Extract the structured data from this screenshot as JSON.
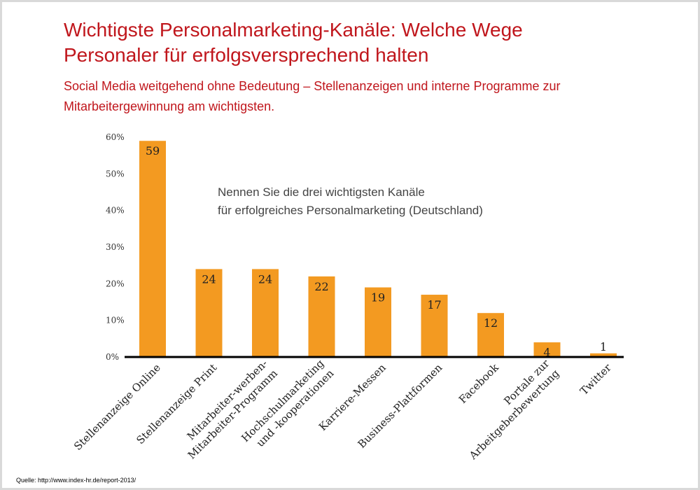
{
  "header": {
    "title_line1": "Wichtigste Personalmarketing-Kanäle: Welche Wege",
    "title_line2": "Personaler für erfolgsversprechend halten",
    "subtitle_line1": "Social Media weitgehend ohne Bedeutung – Stellenanzeigen und interne Programme zur",
    "subtitle_line2": "Mitarbeitergewinnung am wichtigsten."
  },
  "footer": {
    "source": "Quelle: http://www.index-hr.de/report-2013/"
  },
  "colors": {
    "title": "#c0161c",
    "bar": "#f39a21",
    "axis": "#000000"
  },
  "chart_data": {
    "type": "bar",
    "annotation": [
      "Nennen Sie die drei wichtigsten Kanäle",
      "für erfolgreiches Personalmarketing (Deutschland)"
    ],
    "categories": [
      [
        "Stellenanzeige Online"
      ],
      [
        "Stellenanzeige Print"
      ],
      [
        "Mitarbeiter-werben-",
        "Mitarbeiter-Programm"
      ],
      [
        "Hochschulmarketing",
        "und -kooperationen"
      ],
      [
        "Karriere-Messen"
      ],
      [
        "Business-Plattformen"
      ],
      [
        "Facebook"
      ],
      [
        "Portale zur",
        "Arbeitgeberbewertung"
      ],
      [
        "Twitter"
      ]
    ],
    "values": [
      59,
      24,
      24,
      22,
      19,
      17,
      12,
      4,
      1
    ],
    "ylim": [
      0,
      60
    ],
    "yticks": [
      0,
      10,
      20,
      30,
      40,
      50,
      60
    ],
    "ytick_labels": [
      "0%",
      "10%",
      "20%",
      "30%",
      "40%",
      "50%",
      "60%"
    ],
    "grid": false,
    "legend": "none"
  }
}
